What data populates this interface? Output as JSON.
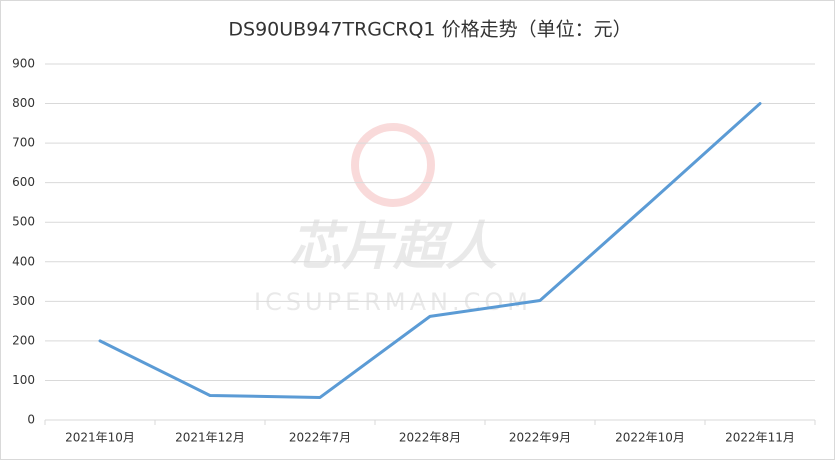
{
  "chart_data": {
    "type": "line",
    "title": "DS90UB947TRGCRQ1 价格走势（单位：元）",
    "watermark": [
      "芯片超人",
      "ICSUPERMAN.COM"
    ],
    "categories": [
      "2021年10月",
      "2021年12月",
      "2022年7月",
      "2022年8月",
      "2022年9月",
      "2022年10月",
      "2022年11月"
    ],
    "values": [
      200,
      62,
      57,
      262,
      302,
      550,
      800
    ],
    "color": "#5b9bd5",
    "ylim": [
      0,
      900
    ],
    "yticks": [
      0,
      100,
      200,
      300,
      400,
      500,
      600,
      700,
      800,
      900
    ],
    "grid": true
  }
}
